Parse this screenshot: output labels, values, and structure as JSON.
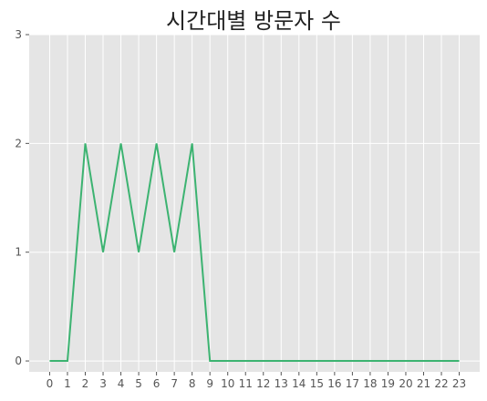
{
  "chart_data": {
    "type": "line",
    "title": "시간대별 방문자 수",
    "xlabel": "",
    "ylabel": "",
    "x": [
      0,
      1,
      2,
      3,
      4,
      5,
      6,
      7,
      8,
      9,
      10,
      11,
      12,
      13,
      14,
      15,
      16,
      17,
      18,
      19,
      20,
      21,
      22,
      23
    ],
    "series": [
      {
        "values": [
          0,
          0,
          2,
          1,
          2,
          1,
          2,
          1,
          2,
          0,
          0,
          0,
          0,
          0,
          0,
          0,
          0,
          0,
          0,
          0,
          0,
          0,
          0,
          0
        ],
        "color": "#3cb371"
      }
    ],
    "xticks": [
      "0",
      "1",
      "2",
      "3",
      "4",
      "5",
      "6",
      "7",
      "8",
      "9",
      "10",
      "11",
      "12",
      "13",
      "14",
      "15",
      "16",
      "17",
      "18",
      "19",
      "20",
      "21",
      "22",
      "23"
    ],
    "yticks": [
      "0",
      "1",
      "2",
      "3"
    ],
    "xlim": [
      -1.15,
      24.15
    ],
    "ylim": [
      -0.1,
      3.0
    ],
    "grid": true,
    "background": "#e5e5e5",
    "grid_color": "#ffffff"
  }
}
